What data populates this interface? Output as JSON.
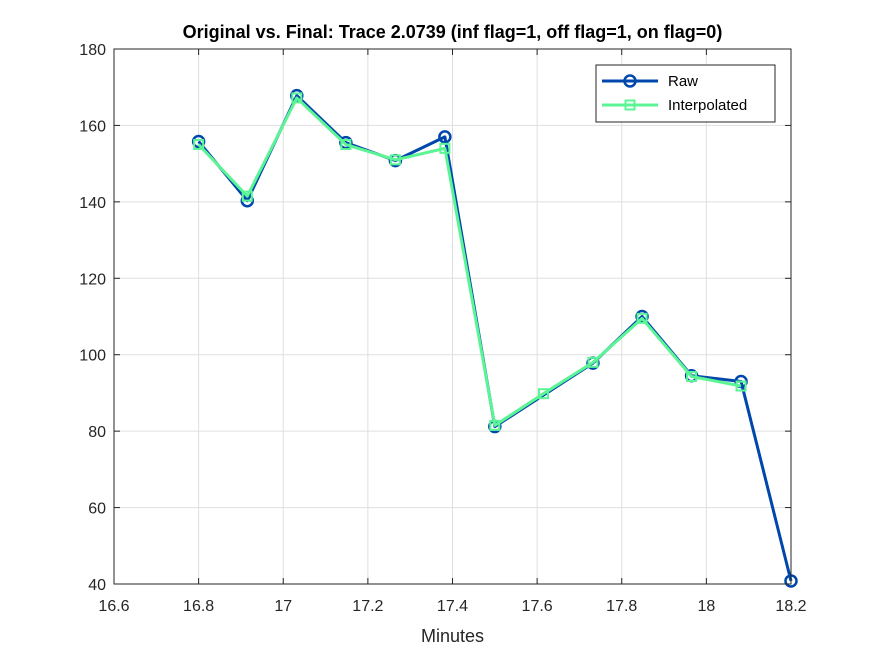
{
  "chart_data": {
    "type": "line",
    "title": "Original vs. Final: Trace 2.0739 (inf flag=1, off flag=1, on flag=0)",
    "xlabel": "Minutes",
    "ylabel": "",
    "xlim": [
      16.6,
      18.2
    ],
    "ylim": [
      40,
      180
    ],
    "xticks": [
      16.6,
      16.8,
      17,
      17.2,
      17.4,
      17.6,
      17.8,
      18,
      18.2
    ],
    "xtick_labels": [
      "16.6",
      "16.8",
      "17",
      "17.2",
      "17.4",
      "17.6",
      "17.8",
      "18",
      "18.2"
    ],
    "yticks": [
      40,
      60,
      80,
      100,
      120,
      140,
      160,
      180
    ],
    "ytick_labels": [
      "40",
      "60",
      "80",
      "100",
      "120",
      "140",
      "160",
      "180"
    ],
    "grid": true,
    "legend_position": "top-right",
    "series": [
      {
        "name": "Raw",
        "color": "#0047AB",
        "marker": "circle",
        "x": [
          16.8,
          16.915,
          17.032,
          17.148,
          17.265,
          17.382,
          17.5,
          17.732,
          17.848,
          17.965,
          18.082,
          18.2
        ],
        "y": [
          155.8,
          140.3,
          167.8,
          155.5,
          150.8,
          157.0,
          81.2,
          97.8,
          110.0,
          94.5,
          93.0,
          40.8
        ]
      },
      {
        "name": "Interpolated",
        "color": "#5CF595",
        "marker": "square",
        "x": [
          16.8,
          16.915,
          17.032,
          17.148,
          17.265,
          17.382,
          17.5,
          17.615,
          17.732,
          17.848,
          17.965,
          18.082
        ],
        "y": [
          155.0,
          141.5,
          167.2,
          155.0,
          151.0,
          154.0,
          81.5,
          89.8,
          98.0,
          109.5,
          94.3,
          91.8
        ]
      }
    ]
  }
}
